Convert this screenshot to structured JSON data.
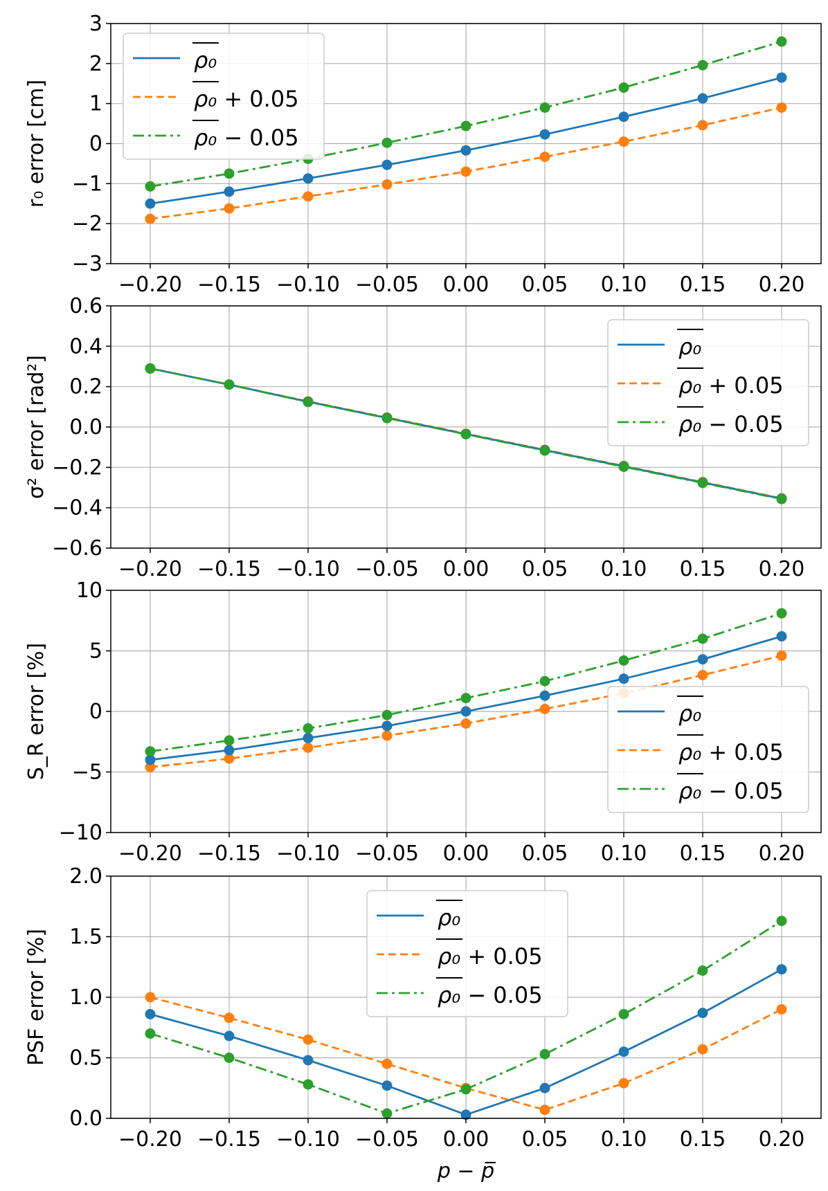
{
  "chart_data": [
    {
      "type": "line",
      "ylabel": "r₀ error [cm]",
      "ylim": [
        -3,
        3
      ],
      "yticks": [
        -3,
        -2,
        -1,
        0,
        1,
        2,
        3
      ],
      "ytick_labels": [
        "−3",
        "−2",
        "−1",
        "0",
        "1",
        "2",
        "3"
      ],
      "legend_loc": "upper-left",
      "series": [
        {
          "name": "blue",
          "values": [
            -1.5,
            -1.2,
            -0.87,
            -0.53,
            -0.17,
            0.23,
            0.67,
            1.13,
            1.65
          ]
        },
        {
          "name": "orange",
          "values": [
            -1.88,
            -1.62,
            -1.32,
            -1.02,
            -0.7,
            -0.33,
            0.05,
            0.46,
            0.9
          ]
        },
        {
          "name": "green",
          "values": [
            -1.07,
            -0.75,
            -0.38,
            0.02,
            0.44,
            0.9,
            1.4,
            1.96,
            2.55
          ]
        }
      ]
    },
    {
      "type": "line",
      "ylabel": "σ² error [rad²]",
      "ylim": [
        -0.6,
        0.6
      ],
      "yticks": [
        -0.6,
        -0.4,
        -0.2,
        0.0,
        0.2,
        0.4,
        0.6
      ],
      "ytick_labels": [
        "−0.6",
        "−0.4",
        "−0.2",
        "0.0",
        "0.2",
        "0.4",
        "0.6"
      ],
      "legend_loc": "upper-right",
      "series": [
        {
          "name": "blue",
          "values": [
            0.29,
            0.21,
            0.125,
            0.045,
            -0.035,
            -0.115,
            -0.195,
            -0.275,
            -0.355
          ]
        },
        {
          "name": "orange",
          "values": [
            0.29,
            0.21,
            0.127,
            0.047,
            -0.033,
            -0.113,
            -0.193,
            -0.273,
            -0.353
          ]
        },
        {
          "name": "green",
          "values": [
            0.29,
            0.21,
            0.124,
            0.044,
            -0.036,
            -0.117,
            -0.197,
            -0.277,
            -0.357
          ]
        }
      ]
    },
    {
      "type": "line",
      "ylabel": "S_R error [%]",
      "ylim": [
        -10,
        10
      ],
      "yticks": [
        -10,
        -5,
        0,
        5,
        10
      ],
      "ytick_labels": [
        "−10",
        "−5",
        "0",
        "5",
        "10"
      ],
      "legend_loc": "lower-right",
      "series": [
        {
          "name": "blue",
          "values": [
            -4.0,
            -3.2,
            -2.2,
            -1.2,
            0.0,
            1.3,
            2.7,
            4.3,
            6.2
          ]
        },
        {
          "name": "orange",
          "values": [
            -4.6,
            -3.9,
            -3.0,
            -2.0,
            -1.0,
            0.2,
            1.5,
            3.0,
            4.6
          ]
        },
        {
          "name": "green",
          "values": [
            -3.3,
            -2.4,
            -1.4,
            -0.3,
            1.1,
            2.5,
            4.2,
            6.0,
            8.1
          ]
        }
      ]
    },
    {
      "type": "line",
      "ylabel": "PSF error [%]",
      "ylim": [
        0.0,
        2.0
      ],
      "yticks": [
        0.0,
        0.5,
        1.0,
        1.5,
        2.0
      ],
      "ytick_labels": [
        "0.0",
        "0.5",
        "1.0",
        "1.5",
        "2.0"
      ],
      "legend_loc": "upper-center",
      "series": [
        {
          "name": "blue",
          "values": [
            0.86,
            0.68,
            0.48,
            0.27,
            0.03,
            0.25,
            0.55,
            0.87,
            1.23
          ]
        },
        {
          "name": "orange",
          "values": [
            1.0,
            0.83,
            0.65,
            0.45,
            0.25,
            0.07,
            0.29,
            0.57,
            0.9
          ]
        },
        {
          "name": "green",
          "values": [
            0.7,
            0.5,
            0.28,
            0.04,
            0.24,
            0.53,
            0.86,
            1.22,
            1.63
          ]
        }
      ]
    }
  ],
  "x": [
    -0.2,
    -0.15,
    -0.1,
    -0.05,
    0.0,
    0.05,
    0.1,
    0.15,
    0.2
  ],
  "xtick_labels": [
    "−0.20",
    "−0.15",
    "−0.10",
    "−0.05",
    "0.00",
    "0.05",
    "0.10",
    "0.15",
    "0.20"
  ],
  "xlabel": "p − p̅",
  "legend": [
    {
      "key": "blue",
      "base": "ρ₀",
      "suffix": ""
    },
    {
      "key": "orange",
      "base": "ρ₀",
      "suffix": " + 0.05"
    },
    {
      "key": "green",
      "base": "ρ₀",
      "suffix": " − 0.05"
    }
  ],
  "colors": {
    "blue": "#1f77b4",
    "orange": "#ff7f0e",
    "green": "#2ca02c"
  },
  "dashes": {
    "blue": "",
    "orange": "11,6",
    "green": "16,6,4,6"
  }
}
